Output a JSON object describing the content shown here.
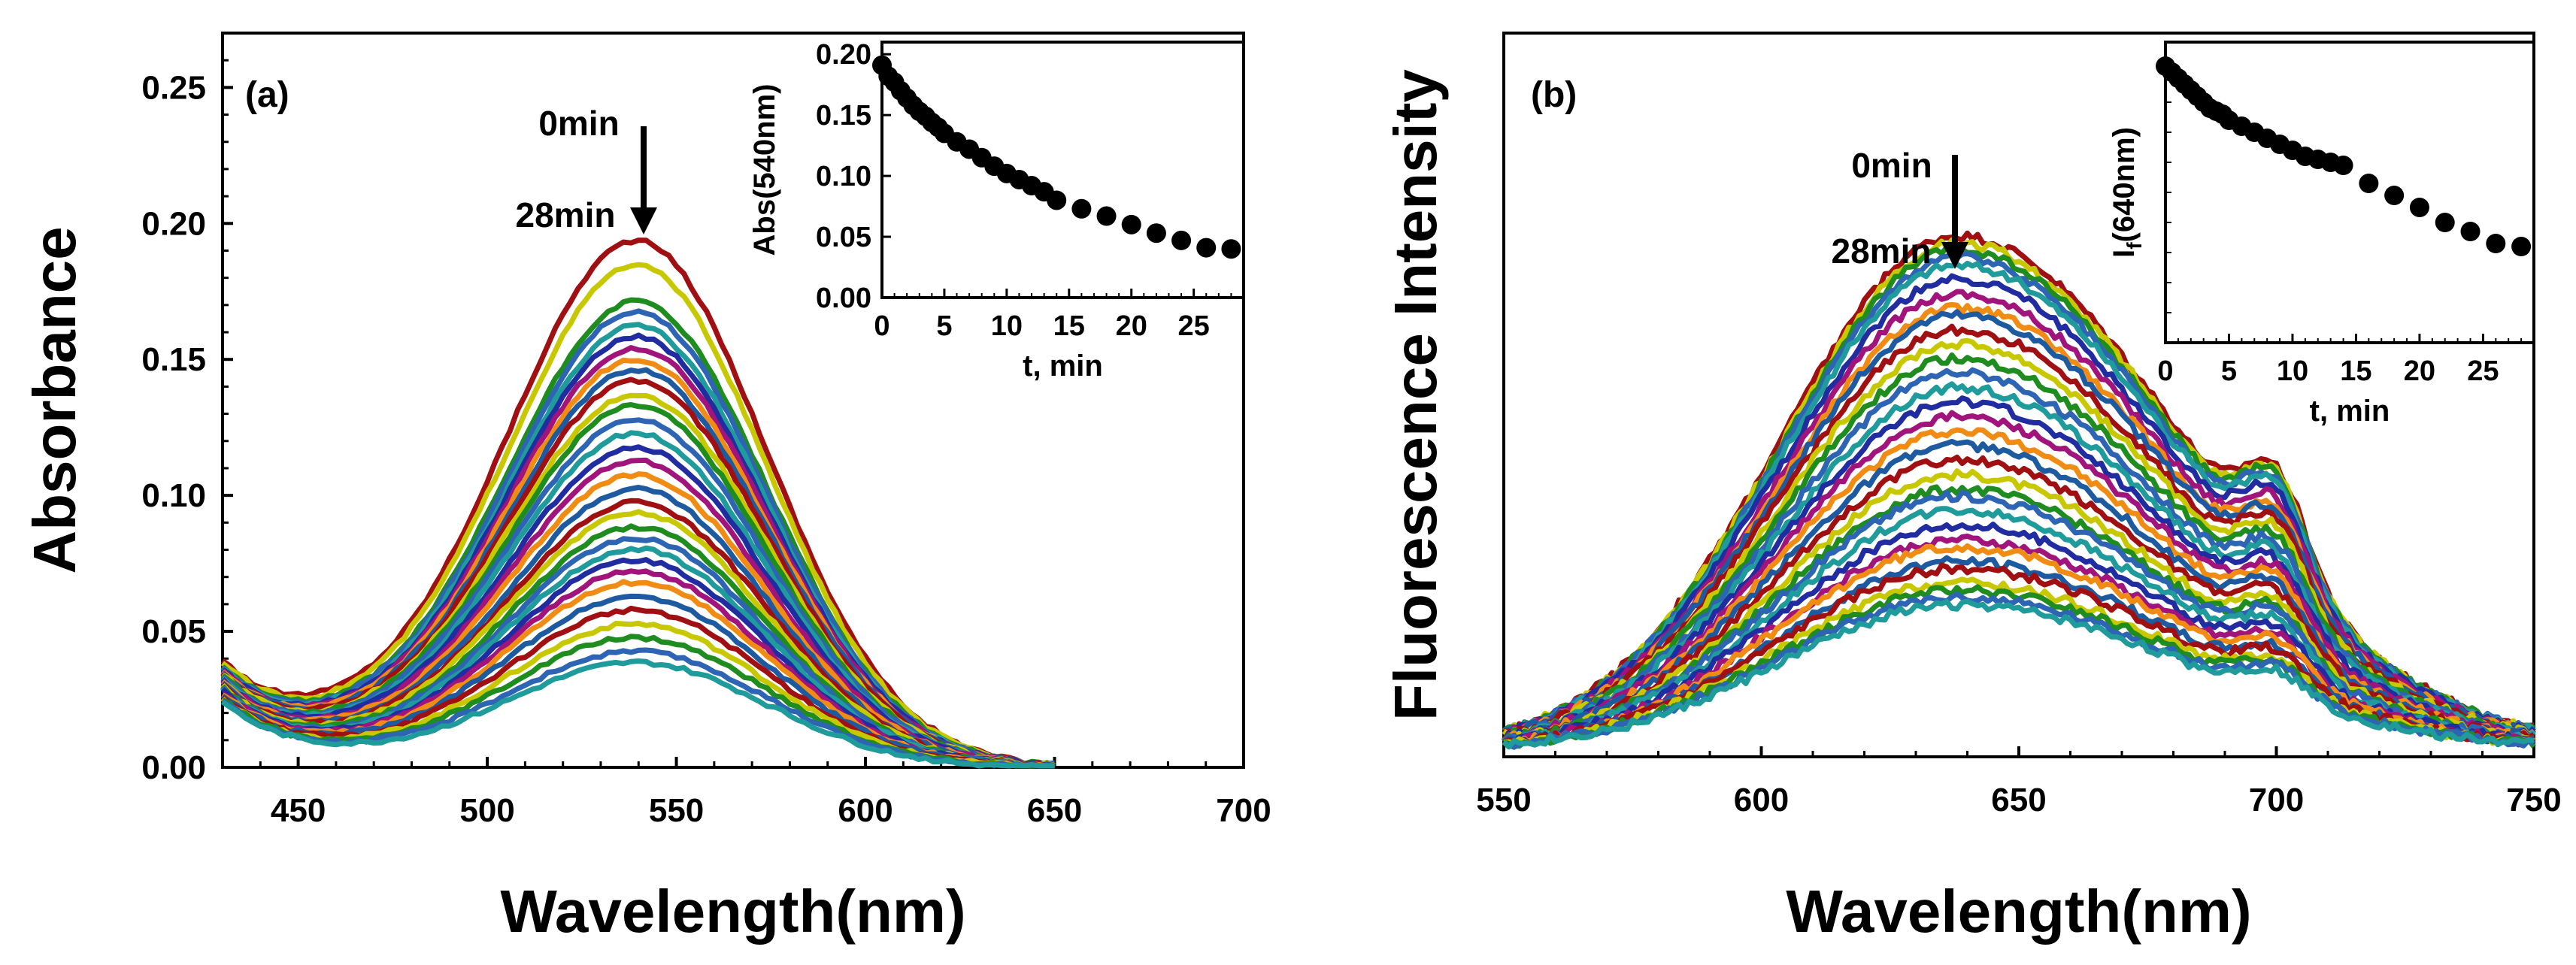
{
  "chart_data": [
    {
      "type": "line",
      "panel_label": "(a)",
      "xlabel": "Wavelength(nm)",
      "ylabel": "Absorbance",
      "xlim": [
        430,
        700
      ],
      "ylim": [
        0,
        0.27
      ],
      "xticks": [
        450,
        500,
        550,
        600,
        650,
        700
      ],
      "xtick_labels": [
        "450",
        "500",
        "550",
        "600",
        "650",
        "700"
      ],
      "yticks": [
        0,
        0.05,
        0.1,
        0.15,
        0.2,
        0.25
      ],
      "ytick_labels": [
        "0.00",
        "0.05",
        "0.10",
        "0.15",
        "0.20",
        "0.25"
      ],
      "annotations": {
        "start": "0min",
        "end": "28min"
      },
      "series_generator": {
        "model": "gaussian_peak_plus_uv_tail",
        "peak_x": 540,
        "width_sigma": 34,
        "peak_values": [
          0.191,
          0.182,
          0.169,
          0.165,
          0.16,
          0.156,
          0.152,
          0.148,
          0.144,
          0.14,
          0.135,
          0.131,
          0.126,
          0.121,
          0.116,
          0.111,
          0.106,
          0.101,
          0.096,
          0.092,
          0.087,
          0.083,
          0.079,
          0.075,
          0.071,
          0.067,
          0.062,
          0.057,
          0.052,
          0.047,
          0.042,
          0.038
        ],
        "tail_at_430": 0.045,
        "tail_decay": 18
      },
      "grid": false,
      "inset": {
        "type": "scatter",
        "xlabel": "t, min",
        "ylabel": "Abs(540nm)",
        "xlim": [
          0,
          29
        ],
        "ylim": [
          0,
          0.21
        ],
        "xticks": [
          0,
          5,
          10,
          15,
          20,
          25
        ],
        "xtick_labels": [
          "0",
          "5",
          "10",
          "15",
          "20",
          "25"
        ],
        "yticks": [
          0,
          0.05,
          0.1,
          0.15,
          0.2
        ],
        "ytick_labels": [
          "0.00",
          "0.05",
          "0.10",
          "0.15",
          "0.20"
        ],
        "x": [
          0,
          0.5,
          1,
          1.5,
          2,
          2.5,
          3,
          3.5,
          4,
          4.5,
          5,
          6,
          7,
          8,
          9,
          10,
          11,
          12,
          13,
          14,
          16,
          18,
          20,
          22,
          24,
          26,
          28
        ],
        "y": [
          0.191,
          0.182,
          0.177,
          0.17,
          0.164,
          0.158,
          0.153,
          0.149,
          0.144,
          0.14,
          0.135,
          0.128,
          0.122,
          0.115,
          0.108,
          0.102,
          0.097,
          0.092,
          0.087,
          0.08,
          0.073,
          0.067,
          0.06,
          0.053,
          0.047,
          0.041,
          0.04
        ]
      }
    },
    {
      "type": "line",
      "panel_label": "(b)",
      "xlabel": "Wavelength(nm)",
      "ylabel": "Fluorescence Intensity",
      "xlim": [
        550,
        750
      ],
      "ylim": [
        0,
        1
      ],
      "xticks": [
        550,
        600,
        650,
        700,
        750
      ],
      "xtick_labels": [
        "550",
        "600",
        "650",
        "700",
        "750"
      ],
      "yticks": [],
      "annotations": {
        "start": "0min",
        "end": "28min"
      },
      "series_generator": {
        "model": "gaussian_emission_with_700nm_shoulder",
        "peak_x": 638,
        "sigma_left": 34,
        "sigma_right": 44,
        "shoulder_x": 700,
        "shoulder_rel": 0.18,
        "peak_values": [
          0.71,
          0.7,
          0.69,
          0.68,
          0.67,
          0.65,
          0.63,
          0.61,
          0.6,
          0.58,
          0.56,
          0.54,
          0.52,
          0.5,
          0.48,
          0.46,
          0.44,
          0.42,
          0.4,
          0.38,
          0.36,
          0.35,
          0.33,
          0.31,
          0.29,
          0.28,
          0.26,
          0.25,
          0.23,
          0.22,
          0.21,
          0.2
        ],
        "baseline": 0.01
      },
      "grid": false,
      "inset": {
        "type": "scatter",
        "xlabel": "t, min",
        "ylabel": "If(640nm)",
        "ylabel_main": "I",
        "ylabel_sub": "f",
        "ylabel_rest": "(640nm)",
        "xlim": [
          0,
          29
        ],
        "ylim": [
          0,
          1
        ],
        "xticks": [
          0,
          5,
          10,
          15,
          20,
          25
        ],
        "xtick_labels": [
          "0",
          "5",
          "10",
          "15",
          "20",
          "25"
        ],
        "yticks": [],
        "x": [
          0,
          0.5,
          1,
          1.5,
          2,
          2.5,
          3,
          3.5,
          4,
          4.5,
          5,
          6,
          7,
          8,
          9,
          10,
          11,
          12,
          13,
          14,
          16,
          18,
          20,
          22,
          24,
          26,
          28
        ],
        "y": [
          0.92,
          0.9,
          0.88,
          0.86,
          0.84,
          0.82,
          0.8,
          0.78,
          0.77,
          0.76,
          0.74,
          0.72,
          0.7,
          0.68,
          0.66,
          0.64,
          0.62,
          0.61,
          0.6,
          0.59,
          0.53,
          0.49,
          0.45,
          0.4,
          0.37,
          0.33,
          0.32
        ]
      }
    }
  ],
  "palette": [
    "#a00f12",
    "#c8c800",
    "#1f8c1f",
    "#2e64b4",
    "#1f9b9b",
    "#202ca0",
    "#a0147c",
    "#f08c14",
    "#1e5aa0"
  ]
}
